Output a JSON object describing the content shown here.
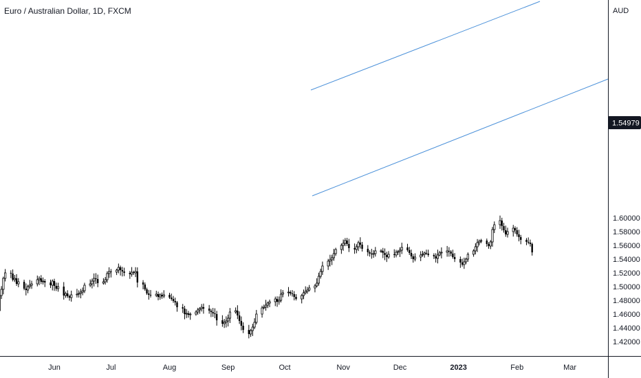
{
  "header": {
    "title": "Euro / Australian Dollar, 1D, FXCM",
    "currency": "AUD"
  },
  "price_scale": {
    "last_price": "1.54979",
    "last_price_bg": "#131722"
  },
  "colors": {
    "candle": "#000000",
    "trendline": "#4a90d9",
    "axis": "#131722",
    "background": "#ffffff"
  },
  "chart_data": {
    "type": "candlestick",
    "title": "Euro / Australian Dollar, 1D, FXCM",
    "ylabel": "AUD",
    "ylim": [
      1.41,
      1.61
    ],
    "y_ticks": [
      "1.42000",
      "1.44000",
      "1.46000",
      "1.48000",
      "1.50000",
      "1.52000",
      "1.54000",
      "1.56000",
      "1.58000",
      "1.60000"
    ],
    "x_ticks": [
      {
        "label": "Jun",
        "bold": false
      },
      {
        "label": "Jul",
        "bold": false
      },
      {
        "label": "Aug",
        "bold": false
      },
      {
        "label": "Sep",
        "bold": false
      },
      {
        "label": "Oct",
        "bold": false
      },
      {
        "label": "Nov",
        "bold": false
      },
      {
        "label": "Dec",
        "bold": false
      },
      {
        "label": "2023",
        "bold": true
      },
      {
        "label": "Feb",
        "bold": false
      },
      {
        "label": "Mar",
        "bold": false
      }
    ],
    "x_tick_dates": [
      "2022-06-01",
      "2022-07-01",
      "2022-08-01",
      "2022-09-01",
      "2022-10-01",
      "2022-11-01",
      "2022-12-01",
      "2023-01-01",
      "2023-02-01",
      "2023-03-01"
    ],
    "start_date": "2022-05-02",
    "closes": [
      1.465,
      1.487,
      1.496,
      1.512,
      1.52,
      1.519,
      1.51,
      1.512,
      1.504,
      1.507,
      1.497,
      1.495,
      1.5,
      1.502,
      1.504,
      1.51,
      1.512,
      1.507,
      1.508,
      1.506,
      1.502,
      1.508,
      1.501,
      1.497,
      1.5,
      1.487,
      1.49,
      1.486,
      1.484,
      1.488,
      1.489,
      1.49,
      1.492,
      1.494,
      1.502,
      1.504,
      1.508,
      1.512,
      1.511,
      1.505,
      1.507,
      1.51,
      1.519,
      1.522,
      1.521,
      1.524,
      1.528,
      1.524,
      1.522,
      1.52,
      1.518,
      1.521,
      1.52,
      1.522,
      1.506,
      1.503,
      1.496,
      1.49,
      1.488,
      1.487,
      1.489,
      1.485,
      1.488,
      1.486,
      1.488,
      1.484,
      1.482,
      1.479,
      1.477,
      1.47,
      1.468,
      1.46,
      1.461,
      1.459,
      1.46,
      1.463,
      1.466,
      1.468,
      1.47,
      1.468,
      1.465,
      1.463,
      1.461,
      1.46,
      1.451,
      1.446,
      1.448,
      1.45,
      1.454,
      1.463,
      1.465,
      1.458,
      1.45,
      1.443,
      1.437,
      1.431,
      1.436,
      1.441,
      1.448,
      1.46,
      1.469,
      1.47,
      1.473,
      1.476,
      1.478,
      1.482,
      1.478,
      1.48,
      1.489,
      1.491,
      1.492,
      1.49,
      1.489,
      1.485,
      1.482,
      1.487,
      1.491,
      1.493,
      1.495,
      1.498,
      1.501,
      1.505,
      1.515,
      1.522,
      1.53,
      1.537,
      1.539,
      1.542,
      1.548,
      1.554,
      1.56,
      1.563,
      1.567,
      1.562,
      1.556,
      1.554,
      1.558,
      1.564,
      1.561,
      1.555,
      1.55,
      1.548,
      1.547,
      1.548,
      1.552,
      1.552,
      1.549,
      1.546,
      1.543,
      1.547,
      1.546,
      1.55,
      1.551,
      1.553,
      1.557,
      1.553,
      1.549,
      1.544,
      1.54,
      1.543,
      1.546,
      1.547,
      1.549,
      1.548,
      1.546,
      1.544,
      1.541,
      1.546,
      1.549,
      1.55,
      1.552,
      1.551,
      1.548,
      1.543,
      1.54,
      1.535,
      1.532,
      1.536,
      1.54,
      1.547,
      1.552,
      1.558,
      1.564,
      1.566,
      1.567,
      1.562,
      1.559,
      1.565,
      1.583,
      1.59,
      1.596,
      1.588,
      1.582,
      1.576,
      1.58,
      1.585,
      1.582,
      1.576,
      1.572,
      1.568,
      1.565,
      1.564,
      1.562,
      1.549797
    ]
  }
}
